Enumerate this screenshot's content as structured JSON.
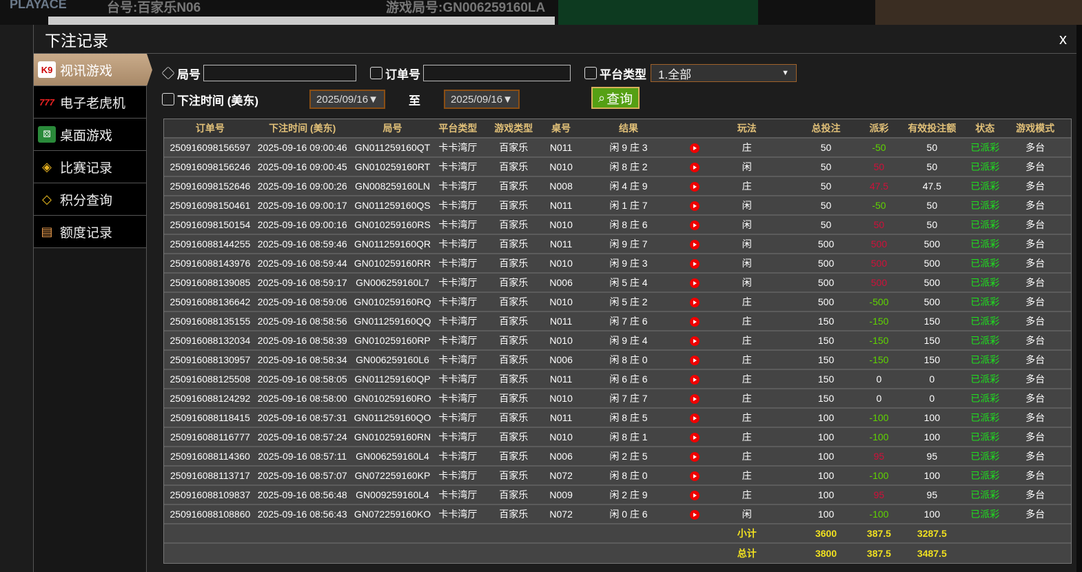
{
  "background": {
    "logo": "PLAYACE",
    "table_no": "台号:百家乐N06",
    "round_no": "游戏局号:GN006259160LA"
  },
  "modal": {
    "title": "下注记录",
    "close": "x"
  },
  "sidebar": {
    "items": [
      {
        "label": "视讯游戏",
        "icon": "cards-icon",
        "active": true
      },
      {
        "label": "电子老虎机",
        "icon": "slot-777-icon"
      },
      {
        "label": "桌面游戏",
        "icon": "dice-icon"
      },
      {
        "label": "比赛记录",
        "icon": "ticket-icon"
      },
      {
        "label": "积分查询",
        "icon": "diamond-icon"
      },
      {
        "label": "额度记录",
        "icon": "document-icon"
      }
    ]
  },
  "filters": {
    "round_label": "局号",
    "round_value": "",
    "order_label": "订单号",
    "order_value": "",
    "platform_label": "平台类型",
    "platform_value": "1.全部",
    "time_label": "下注时间 (美东)",
    "date_from": "2025/09/16▼",
    "to_label": "至",
    "date_to": "2025/09/16▼",
    "query_label": "查询"
  },
  "colors": {
    "negative_payout": "#5fd400",
    "positive_payout": "#d0103a",
    "status": "#1ee21e",
    "header": "#e1c078",
    "summary": "#f0e020",
    "query_button": "#55a014"
  },
  "table": {
    "headers": [
      "订单号",
      "下注时间 (美东)",
      "局号",
      "平台类型",
      "游戏类型",
      "桌号",
      "结果",
      "",
      "玩法",
      "总投注",
      "派彩",
      "有效投注额",
      "状态",
      "游戏模式"
    ],
    "rows": [
      [
        "250916098156597",
        "2025-09-16 09:00:46",
        "GN011259160QT",
        "卡卡湾厅",
        "百家乐",
        "N011",
        "闲 9 庄 3",
        "庄",
        "50",
        "-50",
        "50",
        "已派彩",
        "多台"
      ],
      [
        "250916098156246",
        "2025-09-16 09:00:45",
        "GN010259160RT",
        "卡卡湾厅",
        "百家乐",
        "N010",
        "闲 8 庄 2",
        "闲",
        "50",
        "50",
        "50",
        "已派彩",
        "多台"
      ],
      [
        "250916098152646",
        "2025-09-16 09:00:26",
        "GN008259160LN",
        "卡卡湾厅",
        "百家乐",
        "N008",
        "闲 4 庄 9",
        "庄",
        "50",
        "47.5",
        "47.5",
        "已派彩",
        "多台"
      ],
      [
        "250916098150461",
        "2025-09-16 09:00:17",
        "GN011259160QS",
        "卡卡湾厅",
        "百家乐",
        "N011",
        "闲 1 庄 7",
        "闲",
        "50",
        "-50",
        "50",
        "已派彩",
        "多台"
      ],
      [
        "250916098150154",
        "2025-09-16 09:00:16",
        "GN010259160RS",
        "卡卡湾厅",
        "百家乐",
        "N010",
        "闲 8 庄 6",
        "闲",
        "50",
        "50",
        "50",
        "已派彩",
        "多台"
      ],
      [
        "250916088144255",
        "2025-09-16 08:59:46",
        "GN011259160QR",
        "卡卡湾厅",
        "百家乐",
        "N011",
        "闲 9 庄 7",
        "闲",
        "500",
        "500",
        "500",
        "已派彩",
        "多台"
      ],
      [
        "250916088143976",
        "2025-09-16 08:59:44",
        "GN010259160RR",
        "卡卡湾厅",
        "百家乐",
        "N010",
        "闲 9 庄 3",
        "闲",
        "500",
        "500",
        "500",
        "已派彩",
        "多台"
      ],
      [
        "250916088139085",
        "2025-09-16 08:59:17",
        "GN006259160L7",
        "卡卡湾厅",
        "百家乐",
        "N006",
        "闲 5 庄 4",
        "闲",
        "500",
        "500",
        "500",
        "已派彩",
        "多台"
      ],
      [
        "250916088136642",
        "2025-09-16 08:59:06",
        "GN010259160RQ",
        "卡卡湾厅",
        "百家乐",
        "N010",
        "闲 5 庄 2",
        "庄",
        "500",
        "-500",
        "500",
        "已派彩",
        "多台"
      ],
      [
        "250916088135155",
        "2025-09-16 08:58:56",
        "GN011259160QQ",
        "卡卡湾厅",
        "百家乐",
        "N011",
        "闲 7 庄 6",
        "庄",
        "150",
        "-150",
        "150",
        "已派彩",
        "多台"
      ],
      [
        "250916088132034",
        "2025-09-16 08:58:39",
        "GN010259160RP",
        "卡卡湾厅",
        "百家乐",
        "N010",
        "闲 9 庄 4",
        "庄",
        "150",
        "-150",
        "150",
        "已派彩",
        "多台"
      ],
      [
        "250916088130957",
        "2025-09-16 08:58:34",
        "GN006259160L6",
        "卡卡湾厅",
        "百家乐",
        "N006",
        "闲 8 庄 0",
        "庄",
        "150",
        "-150",
        "150",
        "已派彩",
        "多台"
      ],
      [
        "250916088125508",
        "2025-09-16 08:58:05",
        "GN011259160QP",
        "卡卡湾厅",
        "百家乐",
        "N011",
        "闲 6 庄 6",
        "庄",
        "150",
        "0",
        "0",
        "已派彩",
        "多台"
      ],
      [
        "250916088124292",
        "2025-09-16 08:58:00",
        "GN010259160RO",
        "卡卡湾厅",
        "百家乐",
        "N010",
        "闲 7 庄 7",
        "庄",
        "150",
        "0",
        "0",
        "已派彩",
        "多台"
      ],
      [
        "250916088118415",
        "2025-09-16 08:57:31",
        "GN011259160QO",
        "卡卡湾厅",
        "百家乐",
        "N011",
        "闲 8 庄 5",
        "庄",
        "100",
        "-100",
        "100",
        "已派彩",
        "多台"
      ],
      [
        "250916088116777",
        "2025-09-16 08:57:24",
        "GN010259160RN",
        "卡卡湾厅",
        "百家乐",
        "N010",
        "闲 8 庄 1",
        "庄",
        "100",
        "-100",
        "100",
        "已派彩",
        "多台"
      ],
      [
        "250916088114360",
        "2025-09-16 08:57:11",
        "GN006259160L4",
        "卡卡湾厅",
        "百家乐",
        "N006",
        "闲 2 庄 5",
        "庄",
        "100",
        "95",
        "95",
        "已派彩",
        "多台"
      ],
      [
        "250916088113717",
        "2025-09-16 08:57:07",
        "GN072259160KP",
        "卡卡湾厅",
        "百家乐",
        "N072",
        "闲 8 庄 0",
        "庄",
        "100",
        "-100",
        "100",
        "已派彩",
        "多台"
      ],
      [
        "250916088109837",
        "2025-09-16 08:56:48",
        "GN009259160L4",
        "卡卡湾厅",
        "百家乐",
        "N009",
        "闲 2 庄 9",
        "庄",
        "100",
        "95",
        "95",
        "已派彩",
        "多台"
      ],
      [
        "250916088108860",
        "2025-09-16 08:56:43",
        "GN072259160KO",
        "卡卡湾厅",
        "百家乐",
        "N072",
        "闲 0 庄 6",
        "闲",
        "100",
        "-100",
        "100",
        "已派彩",
        "多台"
      ]
    ],
    "subtotal": {
      "label": "小计",
      "total_bet": "3600",
      "payout": "387.5",
      "valid_bet": "3287.5"
    },
    "total": {
      "label": "总计",
      "total_bet": "3800",
      "payout": "387.5",
      "valid_bet": "3487.5"
    }
  }
}
